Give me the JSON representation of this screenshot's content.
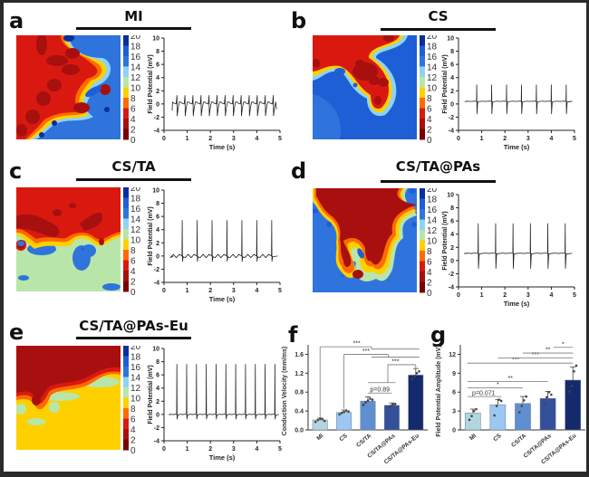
{
  "heatmap_panels": [
    {
      "label": "a",
      "title": "MI",
      "trace": {
        "n_beats": 13,
        "t_start": 0.35,
        "t_end": 4.85,
        "baseline": 0.2,
        "peak_hi": 1.3,
        "peak_lo": -1.8,
        "style": "mi"
      }
    },
    {
      "label": "b",
      "title": "CS",
      "trace": {
        "n_beats": 7,
        "t_start": 0.4,
        "t_end": 4.9,
        "baseline": 0.4,
        "peak_hi": 2.9,
        "peak_lo": -1.5,
        "style": "spike"
      }
    },
    {
      "label": "c",
      "title": "CS/TA",
      "trace": {
        "n_beats": 7,
        "t_start": 0.4,
        "t_end": 4.9,
        "baseline": 0.0,
        "peak_hi": 5.4,
        "peak_lo": -0.8,
        "style": "noisy"
      }
    },
    {
      "label": "d",
      "title": "CS/TA@PAs",
      "trace": {
        "n_beats": 6,
        "t_start": 0.4,
        "t_end": 4.9,
        "baseline": 1.1,
        "peak_hi": 5.6,
        "peak_lo": -1.2,
        "style": "spike"
      }
    },
    {
      "label": "e",
      "title": "CS/TA@PAs-Eu",
      "trace": {
        "n_beats": 11,
        "t_start": 0.3,
        "t_end": 4.95,
        "baseline": 0.0,
        "peak_hi": 7.6,
        "peak_lo": -0.7,
        "style": "spike"
      }
    }
  ],
  "colorbar": {
    "ticks": [
      "20",
      "18",
      "16",
      "14",
      "12",
      "10",
      "8",
      "6",
      "4",
      "2",
      "0"
    ],
    "colors": [
      "#0b2e9c",
      "#1f5fd6",
      "#2f74dc",
      "#8fd3f4",
      "#b8e6a8",
      "#ffd000",
      "#ff6a00",
      "#d9190f",
      "#a80f0f",
      "#7a0000"
    ]
  },
  "trace_axes": {
    "ylabel": "Field Potential (mV)",
    "xlabel": "Time (s)",
    "yticks": [
      "10",
      "8",
      "6",
      "4",
      "2",
      "0",
      "-2",
      "-4"
    ],
    "xticks": [
      "0",
      "1",
      "2",
      "3",
      "4",
      "5"
    ]
  },
  "bar_panels": [
    {
      "label": "f"
    },
    {
      "label": "g"
    }
  ],
  "chart_data": [
    {
      "type": "bar",
      "panel": "f",
      "title": "",
      "xlabel": "",
      "ylabel": "Conduction Velocity (mm/ms)",
      "categories": [
        "MI",
        "CS",
        "CS/TA",
        "CS/TA@PAs",
        "CS/TA@PAs-Eu"
      ],
      "values": [
        0.21,
        0.37,
        0.61,
        0.52,
        1.16
      ],
      "errors": [
        0.04,
        0.05,
        0.09,
        0.05,
        0.14
      ],
      "points": [
        [
          0.17,
          0.21,
          0.24,
          0.23,
          0.19
        ],
        [
          0.33,
          0.36,
          0.38,
          0.41,
          0.39
        ],
        [
          0.53,
          0.58,
          0.62,
          0.66,
          0.64
        ],
        [
          0.48,
          0.51,
          0.54,
          0.55
        ],
        [
          1.08,
          1.14,
          1.2,
          1.24
        ]
      ],
      "colors": [
        "#b3d6de",
        "#9cc7f2",
        "#5f8fd1",
        "#34509b",
        "#142a6c"
      ],
      "ylim": [
        0,
        1.8
      ],
      "yticks": [
        "0.0",
        "0.4",
        "0.8",
        "1.2",
        "1.6"
      ],
      "significance": [
        {
          "label": "***",
          "from": 0,
          "to_group": [
            2,
            3,
            4
          ]
        },
        {
          "label": "***",
          "from": 1,
          "to_group": [
            3,
            4
          ]
        },
        {
          "label": "***",
          "from": 2,
          "to_group": [
            4
          ]
        },
        {
          "label": "p=0.89",
          "from": 2,
          "to": 3
        }
      ]
    },
    {
      "type": "bar",
      "panel": "g",
      "title": "",
      "xlabel": "",
      "ylabel": "Field Potential Amplitude (mV)",
      "categories": [
        "MI",
        "CS",
        "CS/TA",
        "CS/TA@PAs",
        "CS/TA@PAs-Eu"
      ],
      "values": [
        2.7,
        4.0,
        4.2,
        5.0,
        7.9
      ],
      "errors": [
        0.6,
        0.8,
        1.1,
        1.1,
        2.1
      ],
      "points": [
        [
          1.6,
          2.2,
          3.0,
          3.3
        ],
        [
          2.3,
          3.8,
          4.8,
          4.6
        ],
        [
          2.8,
          3.8,
          4.7,
          5.3
        ],
        [
          4.0,
          5.2,
          6.0,
          5.6
        ],
        [
          6.1,
          7.0,
          9.3,
          10.2
        ]
      ],
      "colors": [
        "#b3d6de",
        "#9cc7f2",
        "#5f8fd1",
        "#34509b",
        "#142a6c"
      ],
      "ylim": [
        0,
        13.5
      ],
      "yticks": [
        "0",
        "3",
        "6",
        "9",
        "12"
      ],
      "significance": [
        {
          "label": "p=0.071",
          "from": 0,
          "to": 1
        },
        {
          "label": "*",
          "from": 0,
          "to": 2
        },
        {
          "label": "**",
          "from": 0,
          "to": 3
        },
        {
          "label": "***",
          "from": 0,
          "to": 4
        },
        {
          "label": "***",
          "from": 1,
          "to": 4
        },
        {
          "label": "**",
          "from": 2,
          "to": 4
        },
        {
          "label": "*",
          "from": 3,
          "to": 4
        }
      ]
    }
  ]
}
